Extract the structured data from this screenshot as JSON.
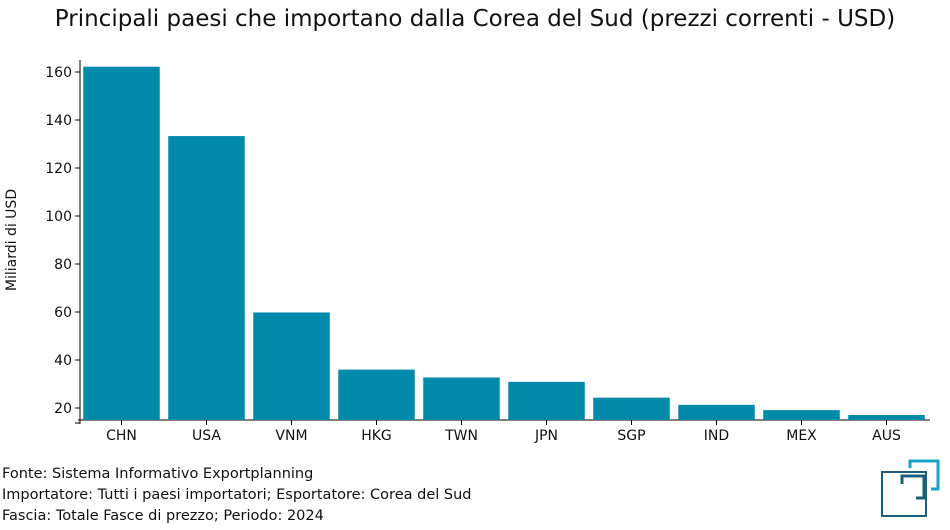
{
  "chart_data": {
    "type": "bar",
    "title": "Principali paesi che importano dalla Corea del Sud (prezzi correnti - USD)",
    "ylabel": "Miliardi di USD",
    "xlabel": "",
    "categories": [
      "CHN",
      "USA",
      "VNM",
      "HKG",
      "TWN",
      "JPN",
      "SGP",
      "IND",
      "MEX",
      "AUS"
    ],
    "values": [
      162.2,
      133.3,
      59.8,
      36.0,
      32.7,
      30.9,
      24.3,
      21.3,
      19.1,
      17.1
    ],
    "ylim": [
      15,
      165
    ],
    "yticks": [
      20,
      40,
      60,
      80,
      100,
      120,
      140,
      160
    ],
    "grid": false,
    "legend": "none",
    "bar_color": "#008aa9"
  },
  "footer": {
    "line1": "Fonte: Sistema Informativo Exportplanning",
    "line2": "Importatore: Tutti i paesi importatori; Esportatore: Corea del Sud",
    "line3": "Fascia: Totale Fasce di prezzo; Periodo: 2024"
  },
  "logo": {
    "icon": "exportplanning-logo-icon",
    "primary_color": "#1a5f7a",
    "accent_color": "#1aa3c4"
  }
}
